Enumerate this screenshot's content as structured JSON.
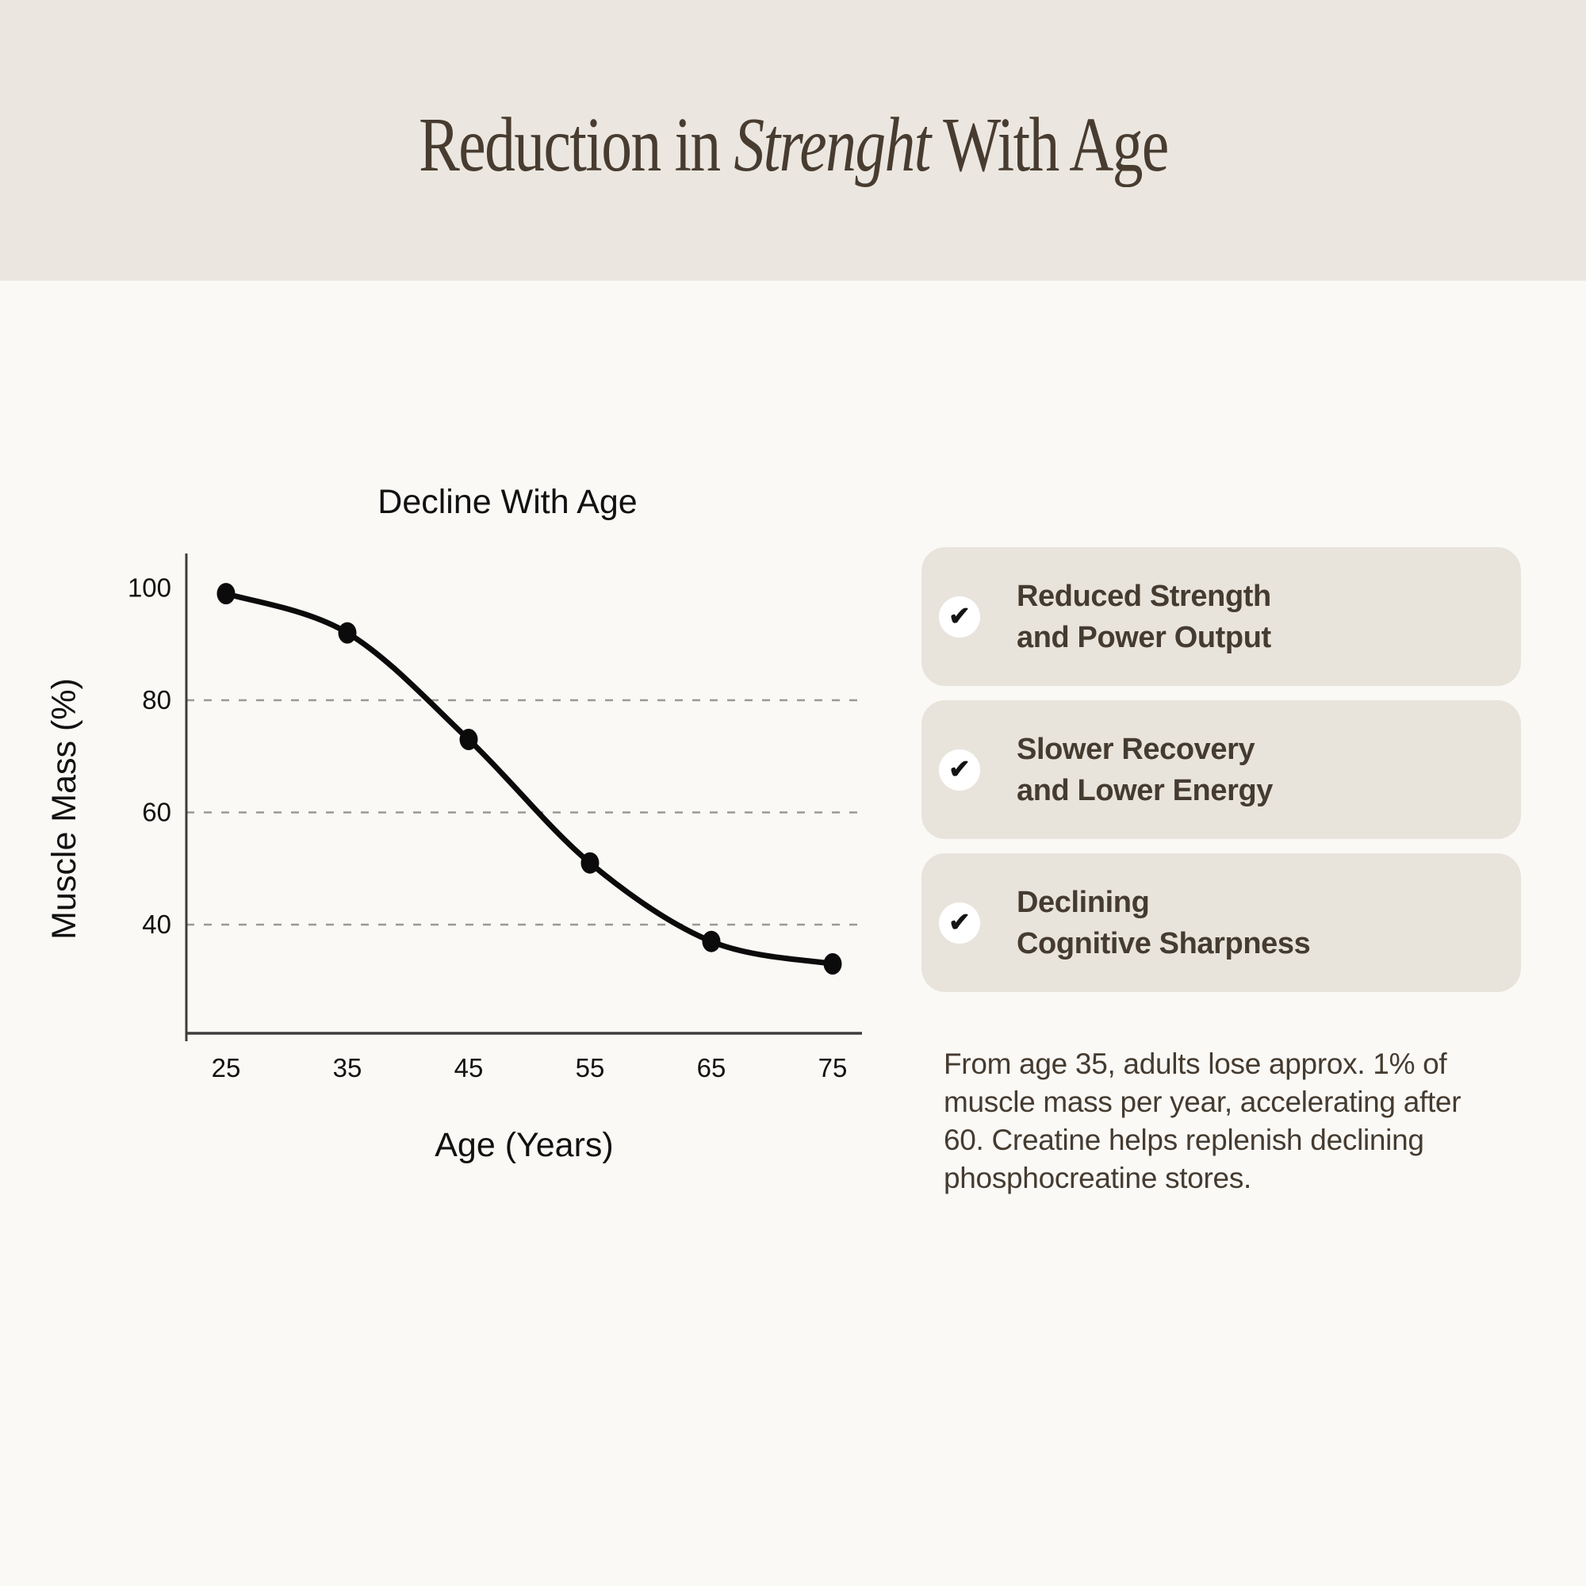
{
  "header": {
    "title_part1": "Reduction in ",
    "title_italic": "Strenght",
    "title_part2": " With Age",
    "band_color": "#ebe7e0",
    "text_color": "#483c30"
  },
  "benefits": {
    "card_bg": "#e8e4dc",
    "check_icon": "✔",
    "items": [
      {
        "label": "Reduced Strength\nand Power Output"
      },
      {
        "label": "Slower Recovery\nand Lower Energy"
      },
      {
        "label": "Declining\nCognitive Sharpness"
      }
    ]
  },
  "note": {
    "text": "From age 35, adults lose approx. 1% of\nmuscle mass per year, accelerating after\n60. Creatine helps replenish declining\nphosphocreatine stores."
  },
  "chart_data": {
    "type": "line",
    "title": "Decline With Age",
    "xlabel": "Age (Years)",
    "ylabel": "Muscle Mass (%)",
    "x": [
      25,
      35,
      45,
      55,
      65,
      75
    ],
    "series": [
      {
        "name": "Muscle Mass (%)",
        "values": [
          99,
          92,
          73,
          51,
          37,
          33
        ]
      }
    ],
    "yticks": [
      100,
      80,
      60,
      40
    ],
    "gridline_yticks": [
      80,
      60,
      40
    ],
    "ylim": [
      20,
      106
    ],
    "xlim": [
      21,
      80
    ],
    "grid": "horizontal-dashed",
    "legend": "none",
    "line_color": "#0b0b0b",
    "marker": "filled-ellipse",
    "grid_color": "#999999",
    "axis_color": "#3d3d3d",
    "text_color": "#111111"
  }
}
